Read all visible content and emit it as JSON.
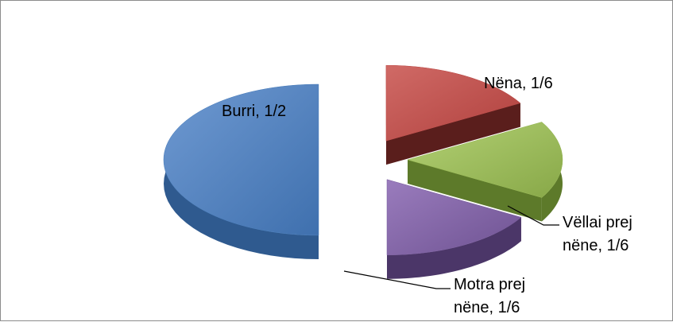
{
  "chart_data": {
    "type": "pie",
    "style": "3d-exploded",
    "title": "",
    "legend": "none",
    "slices": [
      {
        "name": "Burri",
        "value_label": "1/2",
        "value": 0.5,
        "color": "#4a7ebb",
        "label_lines": [
          "Burri, 1/2"
        ]
      },
      {
        "name": "Nëna",
        "value_label": "1/6",
        "value": 0.1667,
        "color": "#be4b48",
        "label_lines": [
          "Nëna, 1/6"
        ]
      },
      {
        "name": "Vëllai prej nëne",
        "value_label": "1/6",
        "value": 0.1667,
        "color": "#98b954",
        "label_lines": [
          "Vëllai prej",
          "nëne, 1/6"
        ]
      },
      {
        "name": "Motra prej nëne",
        "value_label": "1/6",
        "value": 0.1667,
        "color": "#7d60a0",
        "label_lines": [
          "Motra prej",
          "nëne, 1/6"
        ]
      }
    ]
  }
}
